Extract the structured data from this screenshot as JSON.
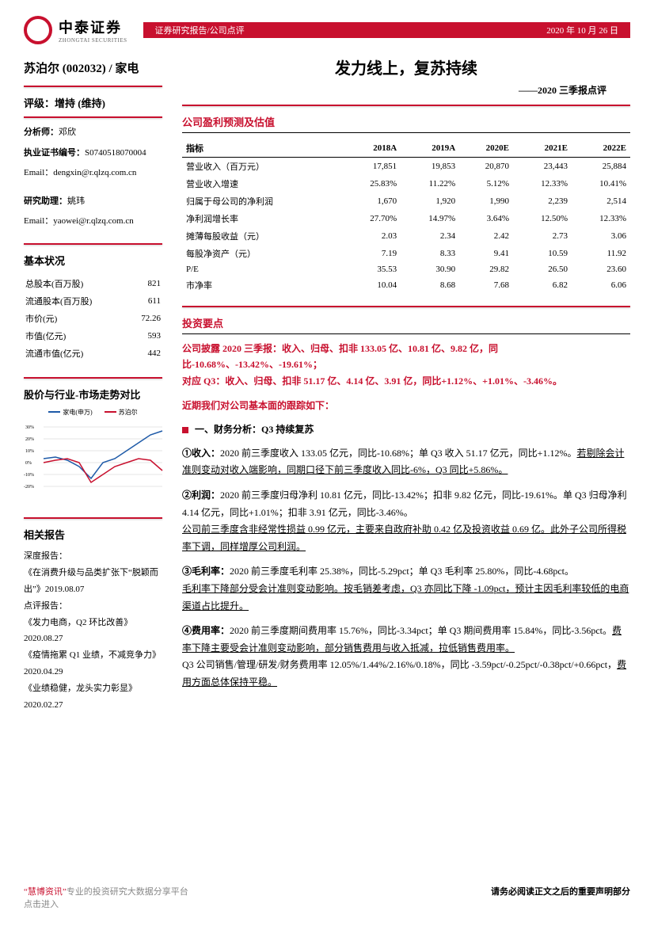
{
  "header": {
    "logoCn": "中泰证券",
    "logoEn": "ZHONGTAI SECURITIES",
    "reportType": "证券研究报告/公司点评",
    "date": "2020 年 10 月 26 日"
  },
  "stock": {
    "name": "苏泊尔 (002032) / 家电"
  },
  "rating": {
    "label": "评级：",
    "value": "增持 (维持)"
  },
  "analyst": {
    "nameLabel": "分析师：",
    "name": "邓欣",
    "licLabel": "执业证书编号：",
    "lic": "S0740518070004",
    "emailLabel": "Email：",
    "email": "dengxin@r.qlzq.com.cn",
    "assistLabel": "研究助理：",
    "assistName": "姚玮",
    "assistEmail": "yaowei@r.qlzq.com.cn"
  },
  "basicHeader": "基本状况",
  "basic": [
    {
      "k": "总股本(百万股)",
      "v": "821"
    },
    {
      "k": "流通股本(百万股)",
      "v": "611"
    },
    {
      "k": "市价(元)",
      "v": "72.26"
    },
    {
      "k": "市值(亿元)",
      "v": "593"
    },
    {
      "k": "流通市值(亿元)",
      "v": "442"
    }
  ],
  "chartHeader": "股价与行业-市场走势对比",
  "chart": {
    "legend": [
      {
        "label": "家电(申万)",
        "color": "#1e5aa8"
      },
      {
        "label": "苏泊尔",
        "color": "#c8102e"
      }
    ],
    "yticks": [
      "30%",
      "25%",
      "20%",
      "15%",
      "10%",
      "5%",
      "0%",
      "-5%",
      "-10%",
      "-15%",
      "-20%"
    ],
    "xticks": [
      "2019/10/18",
      "2019/12/18",
      "2020/2/18",
      "2020/4/18",
      "2020/6/18",
      "2020/8/18",
      "2020/10/18"
    ],
    "series1_color": "#1e5aa8",
    "series2_color": "#c8102e",
    "grid_color": "#cccccc"
  },
  "relatedHeader": "相关报告",
  "related": {
    "l1": "深度报告：",
    "l2": "《在消费升级与品类扩张下“脱颖而出”》2019.08.07",
    "l3": "点评报告：",
    "l4": "《发力电商，Q2 环比改善》2020.08.27",
    "l5": "《疫情拖累 Q1 业绩，不减竞争力》2020.04.29",
    "l6": "《业绩稳健，龙头实力彰显》2020.02.27"
  },
  "title": {
    "main": "发力线上，复苏持续",
    "sub": "——2020 三季报点评"
  },
  "forecastHeader": "公司盈利预测及估值",
  "forecast": {
    "cols": [
      "指标",
      "2018A",
      "2019A",
      "2020E",
      "2021E",
      "2022E"
    ],
    "rows": [
      [
        "营业收入（百万元）",
        "17,851",
        "19,853",
        "20,870",
        "23,443",
        "25,884"
      ],
      [
        "营业收入增速",
        "25.83%",
        "11.22%",
        "5.12%",
        "12.33%",
        "10.41%"
      ],
      [
        "归属于母公司的净利润",
        "1,670",
        "1,920",
        "1,990",
        "2,239",
        "2,514"
      ],
      [
        "净利润增长率",
        "27.70%",
        "14.97%",
        "3.64%",
        "12.50%",
        "12.33%"
      ],
      [
        "摊薄每股收益（元）",
        "2.03",
        "2.34",
        "2.42",
        "2.73",
        "3.06"
      ],
      [
        "每股净资产（元）",
        "7.19",
        "8.33",
        "9.41",
        "10.59",
        "11.92"
      ],
      [
        "P/E",
        "35.53",
        "30.90",
        "29.82",
        "26.50",
        "23.60"
      ],
      [
        "市净率",
        "10.04",
        "8.68",
        "7.68",
        "6.82",
        "6.06"
      ]
    ]
  },
  "investHeader": "投资要点",
  "highlight": {
    "l1": "公司披露 2020 三季报：收入、归母、扣非 133.05 亿、10.81 亿、9.82 亿，同比-10.68%、-13.42%、-19.61%；",
    "l2": "对应 Q3：收入、归母、扣非 51.17 亿、4.14 亿、3.91 亿，同比+1.12%、+1.01%、-3.46%。"
  },
  "track": "近期我们对公司基本面的跟踪如下：",
  "s1": {
    "head": "一、财务分析：Q3 持续复苏",
    "p1a": "①收入：",
    "p1b": "2020 前三季度收入 133.05 亿元，同比-10.68%；单 Q3 收入 51.17 亿元，同比+1.12%。",
    "p1c": "若剔除会计准则变动对收入端影响，同期口径下前三季度收入同比-6%，Q3 同比+5.86%。",
    "p2a": "②利润：",
    "p2b": "2020 前三季度归母净利 10.81 亿元，同比-13.42%；扣非 9.82 亿元，同比-19.61%。单 Q3 归母净利 4.14 亿元，同比+1.01%；扣非 3.91 亿元，同比-3.46%。",
    "p2c": "公司前三季度含非经常性损益 0.99 亿元，主要来自政府补助 0.42 亿及投资收益 0.69 亿。此外子公司所得税率下调，同样增厚公司利润。",
    "p3a": "③毛利率：",
    "p3b": "2020 前三季度毛利率 25.38%，同比-5.29pct；单 Q3 毛利率 25.80%，同比-4.68pct。",
    "p3c": "毛利率下降部分受会计准则变动影响。按毛销差考虑，Q3 亦同比下降 -1.09pct，预计主因毛利率较低的电商渠道占比提升。",
    "p4a": "④费用率：",
    "p4b": "2020 前三季度期间费用率 15.76%，同比-3.34pct；单 Q3 期间费用率 15.84%，同比-3.56pct。",
    "p4c": "费率下降主要受会计准则变动影响，部分销售费用与收入抵减，拉低销售费用率。",
    "p4d": "Q3 公司销售/管理/研发/财务费用率 12.05%/1.44%/2.16%/0.18%，同比 -3.59pct/-0.25pct/-0.38pct/+0.66pct，",
    "p4e": "费用方面总体保持平稳。"
  },
  "footer": {
    "left1": "“慧博资讯”",
    "left2": "专业的投资研究大数据分享平台",
    "left3": "点击进入",
    "right": "请务必阅读正文之后的重要声明部分"
  },
  "colors": {
    "brand": "#c8102e",
    "text": "#000000",
    "bg": "#ffffff"
  }
}
